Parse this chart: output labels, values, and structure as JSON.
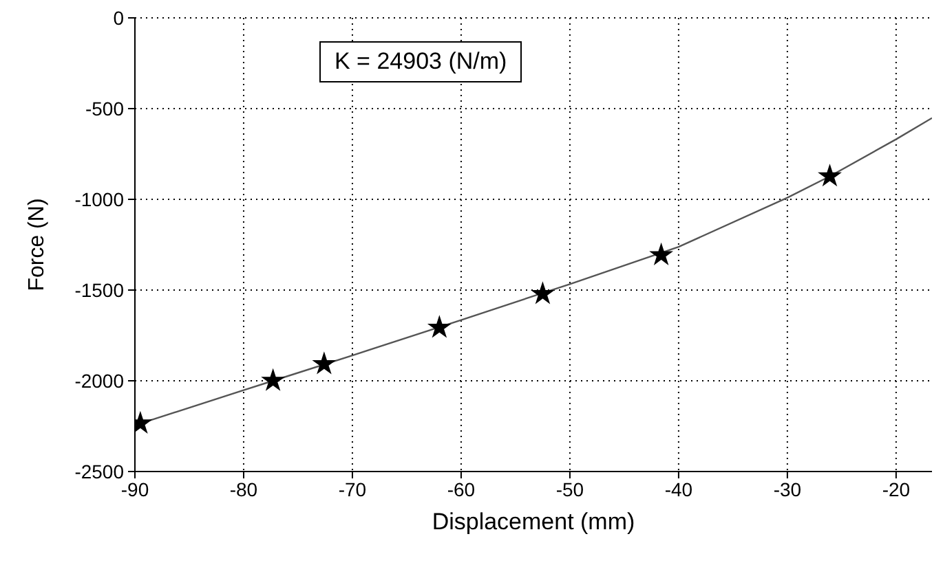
{
  "chart_data": {
    "type": "scatter",
    "xlabel": "Displacement (mm)",
    "ylabel": "Force (N)",
    "annotations": [
      "K = 24903 (N/m)"
    ],
    "xlim": [
      -90,
      -16.7
    ],
    "xticks": [
      -90,
      -80,
      -70,
      -60,
      -50,
      -40,
      -30,
      -20
    ],
    "ylim": [
      -2500,
      0
    ],
    "yticks": [
      -2500,
      -2000,
      -1500,
      -1000,
      -500,
      0
    ],
    "grid": true,
    "series": [
      {
        "color": "#000000",
        "marker": "star",
        "x": [
          -89.5,
          -77.3,
          -72.6,
          -62.0,
          -52.5,
          -41.6,
          -26.1
        ],
        "values": [
          -2235,
          -2000,
          -1908,
          -1707,
          -1521,
          -1307,
          -873
        ]
      },
      {
        "type": "line",
        "color": "#555555",
        "marker": "none",
        "line_style": "solid",
        "x": [
          -89.5,
          -80,
          -77.3,
          -70,
          -60,
          -50,
          -40,
          -30,
          -26.1,
          -20,
          -16.7
        ],
        "values": [
          -2235,
          -2052,
          -2000,
          -1860,
          -1665,
          -1467,
          -1262,
          -991,
          -873,
          -669,
          -552
        ]
      }
    ]
  }
}
